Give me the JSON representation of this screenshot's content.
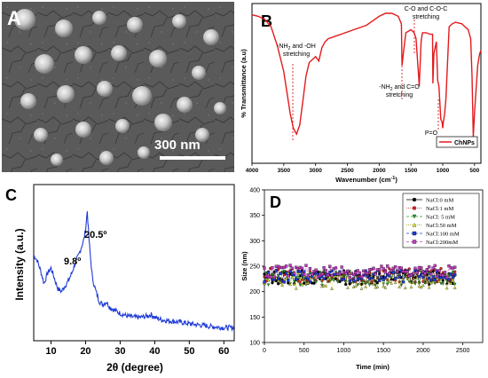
{
  "panels": {
    "a": {
      "label": "A",
      "scale_bar": "300 nm"
    },
    "b": {
      "label": "B",
      "ylabel": "% Transmittance (a.u)",
      "xlabel": "Wavenumber (cm",
      "xlabel_sup": "-1",
      "xlabel_end": ")",
      "legend": "ChNPs",
      "annotations": {
        "nh2_oh_line1": "-NH",
        "nh2_oh_sub": "2",
        "nh2_oh_line1_end": " and -OH",
        "nh2_oh_line2": "stretching",
        "co_line1": "C-O and C-O-C",
        "co_line2": "stretching",
        "nh2_co_line1": "-NH",
        "nh2_co_sub": "2",
        "nh2_co_line1_end": " and C=O",
        "nh2_co_line2": "stretching",
        "po": "P=O"
      }
    },
    "c": {
      "label": "C",
      "ylabel": "Intensity (a.u.)",
      "xlabel": "2θ (degree)",
      "peak1": "9.8º",
      "peak2": "20.5º"
    },
    "d": {
      "label": "D",
      "ylabel": "Size (nm)",
      "xlabel": "Time (min)"
    }
  },
  "chart_data": [
    {
      "type": "line",
      "panel": "B",
      "xlabel": "Wavenumber (cm-1)",
      "ylabel": "% Transmittance (a.u)",
      "xlim": [
        4000,
        400
      ],
      "xticks": [
        4000,
        3500,
        3000,
        2500,
        2000,
        1500,
        1000,
        500
      ],
      "legend_placement": "bottom-right",
      "color": "#e31a1c",
      "series": [
        {
          "name": "ChNPs",
          "x": [
            4000,
            3900,
            3800,
            3700,
            3600,
            3500,
            3450,
            3400,
            3350,
            3300,
            3250,
            3200,
            3150,
            3100,
            3000,
            2950,
            2900,
            2850,
            2800,
            2600,
            2400,
            2200,
            2100,
            2000,
            1900,
            1800,
            1700,
            1650,
            1640,
            1620,
            1580,
            1500,
            1450,
            1420,
            1380,
            1370,
            1340,
            1320,
            1260,
            1200,
            1160,
            1155,
            1140,
            1100,
            1080,
            1060,
            1030,
            1010,
            1000,
            990,
            970,
            950,
            900,
            850,
            800,
            700,
            650,
            600,
            560,
            540,
            520,
            500,
            450,
            420,
            400
          ],
          "y": [
            96,
            95,
            93,
            88,
            75,
            58,
            44,
            30,
            20,
            16,
            22,
            38,
            55,
            64,
            68,
            65,
            74,
            78,
            80,
            83,
            86,
            89,
            92,
            95,
            97,
            97,
            95,
            90,
            62,
            70,
            84,
            86,
            84,
            80,
            55,
            48,
            78,
            84,
            84,
            83,
            83,
            50,
            70,
            78,
            52,
            48,
            26,
            24,
            20,
            24,
            30,
            40,
            88,
            90,
            91,
            90,
            88,
            86,
            80,
            55,
            14,
            30,
            62,
            70,
            72
          ]
        }
      ],
      "annotations": [
        "-NH2 and -OH stretching",
        "C-O and C-O-C stretching",
        "-NH2 and C=O stretching",
        "P=O"
      ]
    },
    {
      "type": "line",
      "panel": "C",
      "xlabel": "2θ (degree)",
      "ylabel": "Intensity (a.u.)",
      "xlim": [
        5,
        63
      ],
      "xticks": [
        10,
        20,
        30,
        40,
        50,
        60
      ],
      "color": "#1f3bd6",
      "series": [
        {
          "name": "",
          "x": [
            5,
            6,
            7,
            8,
            9,
            10,
            11,
            12,
            13,
            14,
            15,
            16,
            17,
            18,
            19,
            19.5,
            20,
            20.5,
            21,
            21.5,
            22,
            23,
            24,
            25,
            26,
            27,
            28,
            30,
            32,
            34,
            36,
            38,
            39,
            40,
            42,
            45,
            48,
            50,
            53,
            56,
            60,
            63
          ],
          "y": [
            62,
            58,
            50,
            40,
            48,
            52,
            44,
            36,
            34,
            38,
            42,
            48,
            56,
            62,
            70,
            74,
            82,
            96,
            74,
            58,
            44,
            34,
            26,
            24,
            26,
            22,
            20,
            17,
            15,
            14,
            14,
            15,
            16,
            14,
            12,
            11,
            10,
            9,
            8,
            7,
            6,
            6
          ]
        }
      ],
      "annotations": [
        "9.8º",
        "20.5º"
      ]
    },
    {
      "type": "scatter",
      "panel": "D",
      "xlabel": "Time (min)",
      "ylabel": "Size (nm)",
      "xlim": [
        0,
        2750
      ],
      "ylim": [
        100,
        400
      ],
      "xticks": [
        0,
        500,
        1000,
        1500,
        2000,
        2500
      ],
      "yticks": [
        100,
        150,
        200,
        250,
        300,
        350,
        400
      ],
      "legend_placement": "top-right",
      "x_start": 0,
      "x_end": 2400,
      "x_step": 25,
      "series": [
        {
          "name": "NaCl:0 mM",
          "color": "#000000",
          "marker": "circle",
          "line": "solid",
          "mean": 228,
          "spread": 14
        },
        {
          "name": "NaCl:1 mM",
          "color": "#d62728",
          "marker": "circle",
          "line": "dotted",
          "mean": 232,
          "spread": 14
        },
        {
          "name": "NaCl: 5 mM",
          "color": "#2ca02c",
          "marker": "triangle-down",
          "line": "dashed",
          "mean": 226,
          "spread": 14
        },
        {
          "name": "NaCl:50 mM",
          "color": "#e8e83a",
          "marker": "triangle-up",
          "line": "dotted",
          "mean": 222,
          "spread": 16
        },
        {
          "name": "NaCl:100 mM",
          "color": "#1f3bd6",
          "marker": "square",
          "line": "dashed",
          "mean": 230,
          "spread": 12
        },
        {
          "name": "NaCl:200mM",
          "color": "#c13cc1",
          "marker": "square",
          "line": "dashed",
          "mean": 240,
          "spread": 12
        }
      ]
    }
  ]
}
